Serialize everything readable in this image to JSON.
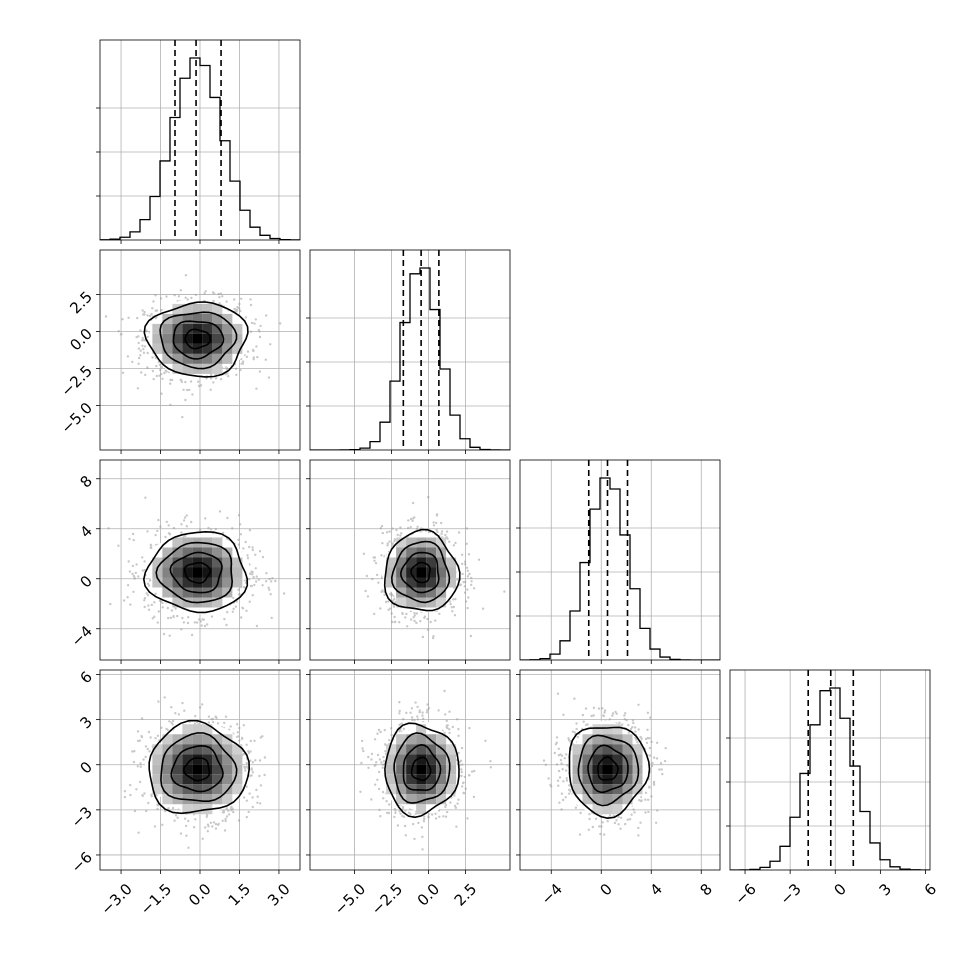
{
  "chart_data": {
    "type": "corner",
    "title": "",
    "n_params": 4,
    "parameters": [
      {
        "label": "",
        "range": [
          -3.8,
          3.8
        ],
        "ticks": [
          -3.0,
          -1.5,
          0.0,
          1.5,
          3.0
        ],
        "tick_labels": [
          "−3.0",
          "−1.5",
          "0.0",
          "1.5",
          "3.0"
        ],
        "quantiles": [
          -0.95,
          -0.15,
          0.8
        ],
        "mean": -0.1,
        "sd": 0.95,
        "bins": 20,
        "hist_max": 1.0
      },
      {
        "label": "",
        "range": [
          -8.0,
          5.5
        ],
        "ticks": [
          -5.0,
          -2.5,
          0.0,
          2.5
        ],
        "tick_labels": [
          "−5.0",
          "−2.5",
          "0.0",
          "2.5"
        ],
        "quantiles": [
          -1.7,
          -0.5,
          0.7
        ],
        "mean": -0.5,
        "sd": 1.25,
        "bins": 20,
        "hist_max": 1.0
      },
      {
        "label": "",
        "range": [
          -6.5,
          9.5
        ],
        "ticks": [
          -4,
          0,
          4,
          8
        ],
        "tick_labels": [
          "−4",
          "0",
          "4",
          "8"
        ],
        "quantiles": [
          -1.0,
          0.5,
          2.1
        ],
        "mean": 0.5,
        "sd": 1.6,
        "bins": 20,
        "hist_max": 1.0
      },
      {
        "label": "",
        "range": [
          -7.0,
          6.3
        ],
        "ticks": [
          -6,
          -3,
          0,
          3,
          6
        ],
        "tick_labels": [
          "−6",
          "−3",
          "0",
          "3",
          "6"
        ],
        "quantiles": [
          -1.8,
          -0.3,
          1.2
        ],
        "mean": -0.3,
        "sd": 1.5,
        "bins": 20,
        "hist_max": 1.0
      }
    ],
    "quantile_levels": [
      0.16,
      0.5,
      0.84
    ],
    "contour_levels": [
      "0.5σ",
      "1σ",
      "1.5σ",
      "2σ"
    ],
    "grid": true,
    "colors": {
      "hist": "#000000",
      "points": "#9a9a9a",
      "contour": "#000000",
      "density_dark": "#000000",
      "grid": "#b0b0b0"
    }
  }
}
